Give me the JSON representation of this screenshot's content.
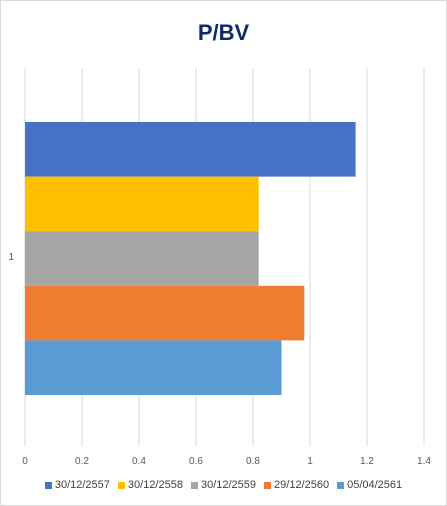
{
  "chart_data": {
    "type": "bar",
    "orientation": "horizontal",
    "title": "P/BV",
    "categories": [
      "1"
    ],
    "xlim": [
      0,
      1.4
    ],
    "xticks": [
      "0",
      "0.2",
      "0.4",
      "0.6",
      "0.8",
      "1",
      "1.2",
      "1.4"
    ],
    "grid": true,
    "legend_position": "bottom",
    "series": [
      {
        "name": "30/12/2557",
        "color": "#4472C4",
        "values": [
          1.16
        ]
      },
      {
        "name": "30/12/2558",
        "color": "#FFC000",
        "values": [
          0.82
        ]
      },
      {
        "name": "30/12/2559",
        "color": "#A5A5A5",
        "values": [
          0.82
        ]
      },
      {
        "name": "29/12/2560",
        "color": "#ED7D31",
        "values": [
          0.98
        ]
      },
      {
        "name": "05/04/2561",
        "color": "#5B9BD5",
        "values": [
          0.9
        ]
      }
    ]
  }
}
